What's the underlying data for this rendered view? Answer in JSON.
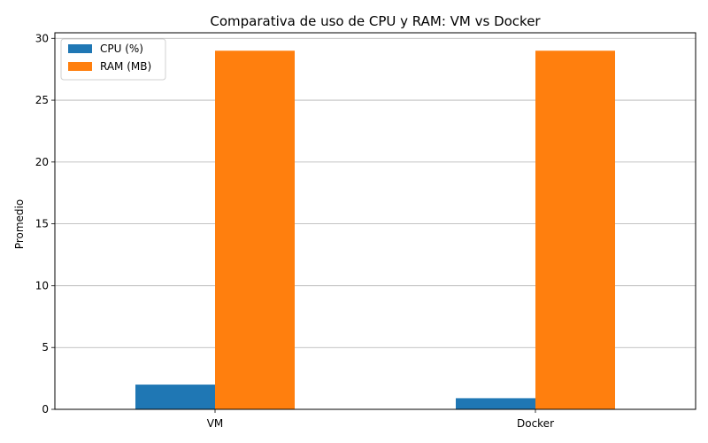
{
  "chart_data": {
    "type": "bar",
    "title": "Comparativa de uso de CPU y RAM: VM vs Docker",
    "xlabel": "",
    "ylabel": "Promedio",
    "categories": [
      "VM",
      "Docker"
    ],
    "series": [
      {
        "name": "CPU (%)",
        "values": [
          2.0,
          0.9
        ],
        "color": "#1f77b4"
      },
      {
        "name": "RAM (MB)",
        "values": [
          29.0,
          29.0
        ],
        "color": "#ff7f0e"
      }
    ],
    "ylim": [
      0,
      30.45
    ],
    "yticks": [
      0,
      5,
      10,
      15,
      20,
      25,
      30
    ],
    "grid": "y",
    "legend": "top-left"
  }
}
